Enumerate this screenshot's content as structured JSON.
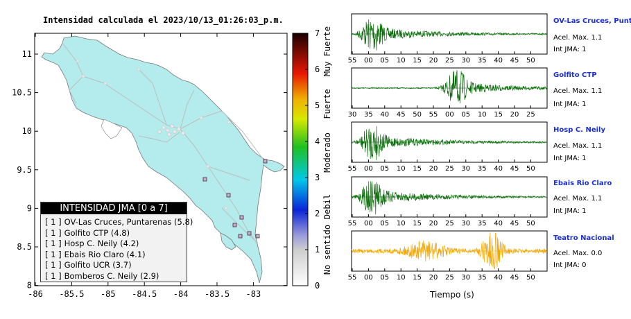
{
  "map": {
    "title": "Intensidad calculada el 2023/10/13_01:26:03_p.m.",
    "yticks": [
      "11",
      "10.5",
      "10",
      "9.5",
      "9",
      "8.5",
      "8"
    ],
    "xticks": [
      "-86",
      "-85.5",
      "-85",
      "-84.5",
      "-84",
      "-83.5",
      "-83"
    ]
  },
  "colorbar": {
    "ticks": [
      "0",
      "1",
      "2",
      "3",
      "4",
      "5",
      "6",
      "7"
    ],
    "labels": [
      "No sentido",
      "Debil",
      "Moderado",
      "Fuerte",
      "Muy Fuerte"
    ]
  },
  "legend": {
    "header": "INTENSIDAD JMA [0 a 7]",
    "items": [
      {
        "pre": "[ 1 ]",
        "text": "OV-Las Cruces, Puntarenas (5.8)"
      },
      {
        "pre": "[ 1 ]",
        "text": "Golfito CTP (4.8)"
      },
      {
        "pre": "[ 1 ]",
        "text": "Hosp C. Neily (4.2)"
      },
      {
        "pre": "[ 1 ]",
        "text": "Ebais Rio Claro (4.1)"
      },
      {
        "pre": "[ 1 ]",
        "text": "Golfito UCR (3.7)"
      },
      {
        "pre": "[ 1 ]",
        "text": "Bomberos C. Neily (2.9)"
      }
    ]
  },
  "stations": [
    {
      "name": "OV-Las Cruces, Puntar",
      "accel": "Acel. Max. 1.1",
      "int": "Int JMA: 1",
      "color": "#0a6e0a",
      "ticks": [
        "55",
        "00",
        "05",
        "10",
        "15",
        "20",
        "25",
        "30",
        "35",
        "40",
        "45",
        "50"
      ]
    },
    {
      "name": "Golfito CTP",
      "accel": "Acel. Max. 1.1",
      "int": "Int JMA: 1",
      "color": "#0a6e0a",
      "ticks": [
        "30",
        "35",
        "40",
        "45",
        "50",
        "55",
        "00",
        "05",
        "10",
        "15",
        "20",
        "25"
      ]
    },
    {
      "name": "Hosp C. Neily",
      "accel": "Acel. Max. 1.1",
      "int": "Int JMA: 1",
      "color": "#0a6e0a",
      "ticks": [
        "55",
        "00",
        "05",
        "10",
        "15",
        "20",
        "25",
        "30",
        "35",
        "40",
        "45",
        "50"
      ]
    },
    {
      "name": "Ebais Rio Claro",
      "accel": "Acel. Max. 1.1",
      "int": "Int JMA: 1",
      "color": "#0a6e0a",
      "ticks": [
        "55",
        "00",
        "05",
        "10",
        "15",
        "20",
        "25",
        "30",
        "35",
        "40",
        "45",
        "50"
      ]
    },
    {
      "name": "Teatro Nacional",
      "accel": "Acel. Max. 0.0",
      "int": "Int JMA: 0",
      "color": "#f5a800",
      "ticks": [
        "55",
        "00",
        "05",
        "10",
        "15",
        "20",
        "25",
        "30",
        "35",
        "40",
        "45",
        "50"
      ]
    }
  ],
  "waveform_xlabel": "Tiempo (s)"
}
